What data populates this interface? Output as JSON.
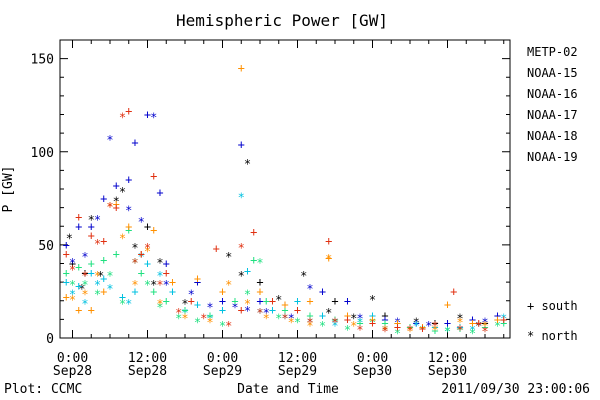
{
  "chart_data": {
    "type": "scatter",
    "title": "Hemispheric Power [GW]",
    "ylabel": "P [GW]",
    "xlabel": "Date and Time",
    "footer_left": "Plot: CCMC",
    "footer_right": "2011/09/30 23:00:06",
    "ylim": [
      0,
      160
    ],
    "yticks": [
      0,
      50,
      100,
      150
    ],
    "xlim_hours": [
      -2,
      70
    ],
    "xticks": [
      {
        "h": 0,
        "time": "0:00",
        "date": "Sep28"
      },
      {
        "h": 12,
        "time": "12:00",
        "date": "Sep28"
      },
      {
        "h": 24,
        "time": "0:00",
        "date": "Sep29"
      },
      {
        "h": 36,
        "time": "12:00",
        "date": "Sep29"
      },
      {
        "h": 48,
        "time": "0:00",
        "date": "Sep30"
      },
      {
        "h": 60,
        "time": "12:00",
        "date": "Sep30"
      }
    ],
    "legend_markers": [
      {
        "symbol": "+",
        "label": "south"
      },
      {
        "symbol": "*",
        "label": "north"
      }
    ],
    "series": [
      {
        "name": "METP-02",
        "color": "#000000",
        "south": [
          [
            0,
            40
          ],
          [
            2,
            35
          ],
          [
            12,
            60
          ],
          [
            20,
            30
          ],
          [
            30,
            30
          ],
          [
            42,
            20
          ],
          [
            50,
            12
          ],
          [
            58,
            8
          ],
          [
            66,
            8
          ]
        ],
        "north": [
          [
            -0.5,
            55
          ],
          [
            1.5,
            28
          ],
          [
            3,
            65
          ],
          [
            4.5,
            35
          ],
          [
            7,
            75
          ],
          [
            8,
            80
          ],
          [
            10,
            50
          ],
          [
            13,
            30
          ],
          [
            14,
            42
          ],
          [
            18,
            20
          ],
          [
            25,
            45
          ],
          [
            27,
            35
          ],
          [
            28,
            95
          ],
          [
            33,
            22
          ],
          [
            37,
            35
          ],
          [
            41,
            15
          ],
          [
            45,
            12
          ],
          [
            48,
            22
          ],
          [
            55,
            10
          ],
          [
            62,
            12
          ],
          [
            65,
            8
          ]
        ]
      },
      {
        "name": "NOAA-15",
        "color": "#0000cc",
        "south": [
          [
            -1,
            50
          ],
          [
            1,
            60
          ],
          [
            3,
            60
          ],
          [
            5,
            75
          ],
          [
            7,
            82
          ],
          [
            9,
            85
          ],
          [
            10,
            105
          ],
          [
            12,
            120
          ],
          [
            14,
            78
          ],
          [
            15,
            40
          ],
          [
            20,
            30
          ],
          [
            24,
            20
          ],
          [
            27,
            104
          ],
          [
            30,
            20
          ],
          [
            34,
            18
          ],
          [
            40,
            25
          ],
          [
            44,
            20
          ],
          [
            50,
            10
          ],
          [
            55,
            8
          ],
          [
            60,
            8
          ],
          [
            64,
            10
          ],
          [
            68,
            12
          ]
        ],
        "north": [
          [
            0,
            42
          ],
          [
            2,
            45
          ],
          [
            4,
            65
          ],
          [
            6,
            108
          ],
          [
            9,
            70
          ],
          [
            11,
            64
          ],
          [
            13,
            120
          ],
          [
            15,
            30
          ],
          [
            19,
            25
          ],
          [
            22,
            18
          ],
          [
            26,
            18
          ],
          [
            28,
            16
          ],
          [
            31,
            15
          ],
          [
            35,
            12
          ],
          [
            38,
            28
          ],
          [
            42,
            10
          ],
          [
            46,
            12
          ],
          [
            52,
            10
          ],
          [
            57,
            8
          ],
          [
            62,
            6
          ],
          [
            66,
            10
          ]
        ]
      },
      {
        "name": "NOAA-16",
        "color": "#00c0e0",
        "south": [
          [
            -1,
            30
          ],
          [
            1,
            28
          ],
          [
            3,
            35
          ],
          [
            5,
            32
          ],
          [
            8,
            22
          ],
          [
            10,
            25
          ],
          [
            12,
            40
          ],
          [
            16,
            25
          ],
          [
            20,
            18
          ],
          [
            24,
            15
          ],
          [
            28,
            36
          ],
          [
            32,
            15
          ],
          [
            36,
            20
          ],
          [
            40,
            12
          ],
          [
            44,
            10
          ],
          [
            48,
            12
          ],
          [
            52,
            8
          ],
          [
            58,
            6
          ],
          [
            62,
            6
          ],
          [
            68,
            10
          ]
        ],
        "north": [
          [
            0,
            25
          ],
          [
            2,
            20
          ],
          [
            4,
            30
          ],
          [
            6,
            28
          ],
          [
            9,
            20
          ],
          [
            11,
            45
          ],
          [
            14,
            35
          ],
          [
            18,
            15
          ],
          [
            22,
            12
          ],
          [
            27,
            77
          ],
          [
            30,
            15
          ],
          [
            34,
            12
          ],
          [
            38,
            10
          ],
          [
            42,
            8
          ],
          [
            46,
            10
          ],
          [
            50,
            6
          ],
          [
            55,
            8
          ],
          [
            60,
            5
          ],
          [
            64,
            6
          ],
          [
            69,
            12
          ]
        ]
      },
      {
        "name": "NOAA-17",
        "color": "#20e080",
        "south": [
          [
            -1,
            35
          ],
          [
            1,
            38
          ],
          [
            3,
            40
          ],
          [
            5,
            42
          ],
          [
            7,
            45
          ],
          [
            9,
            58
          ],
          [
            11,
            35
          ],
          [
            13,
            25
          ],
          [
            15,
            20
          ],
          [
            18,
            15
          ],
          [
            22,
            12
          ],
          [
            26,
            20
          ],
          [
            29,
            42
          ],
          [
            31,
            20
          ],
          [
            34,
            15
          ],
          [
            38,
            12
          ],
          [
            42,
            10
          ],
          [
            46,
            8
          ],
          [
            50,
            8
          ],
          [
            54,
            6
          ],
          [
            58,
            4
          ],
          [
            62,
            5
          ],
          [
            66,
            6
          ],
          [
            69,
            8
          ]
        ],
        "north": [
          [
            0,
            30
          ],
          [
            2,
            30
          ],
          [
            4,
            25
          ],
          [
            6,
            35
          ],
          [
            8,
            20
          ],
          [
            10,
            42
          ],
          [
            12,
            30
          ],
          [
            14,
            18
          ],
          [
            17,
            12
          ],
          [
            20,
            10
          ],
          [
            24,
            8
          ],
          [
            28,
            25
          ],
          [
            30,
            42
          ],
          [
            33,
            12
          ],
          [
            36,
            10
          ],
          [
            40,
            8
          ],
          [
            44,
            6
          ],
          [
            48,
            10
          ],
          [
            52,
            4
          ],
          [
            56,
            6
          ],
          [
            60,
            5
          ],
          [
            64,
            4
          ],
          [
            68,
            8
          ]
        ]
      },
      {
        "name": "NOAA-18",
        "color": "#ff9000",
        "south": [
          [
            -1,
            22
          ],
          [
            1,
            15
          ],
          [
            3,
            15
          ],
          [
            5,
            25
          ],
          [
            7,
            72
          ],
          [
            9,
            60
          ],
          [
            11,
            45
          ],
          [
            13,
            58
          ],
          [
            16,
            30
          ],
          [
            20,
            32
          ],
          [
            24,
            25
          ],
          [
            27,
            145
          ],
          [
            30,
            25
          ],
          [
            34,
            18
          ],
          [
            38,
            20
          ],
          [
            41,
            43
          ],
          [
            44,
            12
          ],
          [
            48,
            10
          ],
          [
            52,
            8
          ],
          [
            56,
            6
          ],
          [
            60,
            18
          ],
          [
            64,
            8
          ],
          [
            68,
            10
          ]
        ],
        "north": [
          [
            0,
            22
          ],
          [
            2,
            25
          ],
          [
            4,
            35
          ],
          [
            6,
            72
          ],
          [
            8,
            55
          ],
          [
            10,
            30
          ],
          [
            12,
            48
          ],
          [
            14,
            20
          ],
          [
            18,
            12
          ],
          [
            22,
            10
          ],
          [
            25,
            30
          ],
          [
            28,
            20
          ],
          [
            31,
            12
          ],
          [
            35,
            10
          ],
          [
            38,
            8
          ],
          [
            41,
            44
          ],
          [
            45,
            8
          ],
          [
            50,
            6
          ],
          [
            54,
            5
          ],
          [
            58,
            6
          ],
          [
            62,
            10
          ],
          [
            66,
            8
          ]
        ]
      },
      {
        "name": "NOAA-19",
        "color": "#e03010",
        "south": [
          [
            -1,
            45
          ],
          [
            1,
            65
          ],
          [
            3,
            55
          ],
          [
            5,
            52
          ],
          [
            7,
            70
          ],
          [
            9,
            122
          ],
          [
            11,
            45
          ],
          [
            13,
            87
          ],
          [
            15,
            35
          ],
          [
            19,
            20
          ],
          [
            23,
            48
          ],
          [
            27,
            15
          ],
          [
            29,
            57
          ],
          [
            32,
            20
          ],
          [
            36,
            15
          ],
          [
            41,
            52
          ],
          [
            44,
            10
          ],
          [
            48,
            8
          ],
          [
            52,
            6
          ],
          [
            56,
            5
          ],
          [
            61,
            25
          ],
          [
            65,
            8
          ],
          [
            69,
            10
          ]
        ],
        "north": [
          [
            0,
            38
          ],
          [
            2,
            35
          ],
          [
            4,
            52
          ],
          [
            6,
            72
          ],
          [
            8,
            120
          ],
          [
            10,
            42
          ],
          [
            12,
            50
          ],
          [
            14,
            30
          ],
          [
            17,
            15
          ],
          [
            21,
            12
          ],
          [
            25,
            8
          ],
          [
            27,
            50
          ],
          [
            30,
            15
          ],
          [
            34,
            12
          ],
          [
            38,
            10
          ],
          [
            42,
            10
          ],
          [
            46,
            6
          ],
          [
            50,
            5
          ],
          [
            54,
            6
          ],
          [
            58,
            8
          ],
          [
            62,
            6
          ],
          [
            66,
            5
          ]
        ]
      }
    ]
  }
}
